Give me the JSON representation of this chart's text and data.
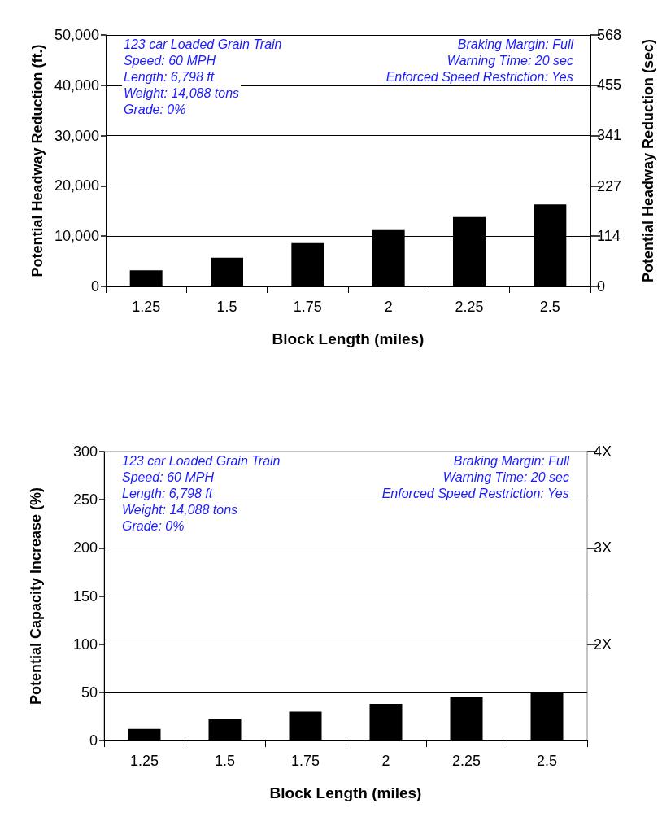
{
  "chart_data": [
    {
      "type": "bar",
      "xlabel": "Block Length (miles)",
      "ylabel": "Potential Headway Reduction (ft.)",
      "y2label": "Potential Headway Reduction (sec)",
      "categories": [
        "1.25",
        "1.5",
        "1.75",
        "2",
        "2.25",
        "2.5"
      ],
      "series": [
        {
          "color": "#000000",
          "values": [
            3200,
            5700,
            8600,
            11200,
            13800,
            16300
          ]
        }
      ],
      "ylim": [
        0,
        50000
      ],
      "yticks": [
        {
          "value": 0,
          "label": "0"
        },
        {
          "value": 10000,
          "label": "10,000"
        },
        {
          "value": 20000,
          "label": "20,000"
        },
        {
          "value": 30000,
          "label": "30,000"
        },
        {
          "value": 40000,
          "label": "40,000"
        },
        {
          "value": 50000,
          "label": "50,000"
        }
      ],
      "y2lim": [
        0,
        568
      ],
      "y2ticks": [
        0,
        114,
        227,
        341,
        455,
        568
      ],
      "grid": "y",
      "annotations": [
        "123 car Loaded Grain Train",
        "Speed: 60 MPH",
        "Length: 6,798 ft",
        "Weight: 14,088 tons",
        "Grade: 0%",
        "Braking Margin: Full",
        "Warning Time: 20 sec",
        "Enforced Speed Restriction: Yes"
      ]
    },
    {
      "type": "bar",
      "xlabel": "Block Length (miles)",
      "ylabel": "Potential Capacity Increase (%)",
      "categories": [
        "1.25",
        "1.5",
        "1.75",
        "2",
        "2.25",
        "2.5"
      ],
      "series": [
        {
          "color": "#000000",
          "values": [
            12,
            22,
            30,
            38,
            45,
            50
          ]
        }
      ],
      "ylim": [
        0,
        300
      ],
      "yticks": [
        0,
        50,
        100,
        150,
        200,
        250,
        300
      ],
      "y2lim": [
        1,
        4
      ],
      "y2ticks": [
        {
          "value": 2,
          "label": "2X"
        },
        {
          "value": 3,
          "label": "3X"
        },
        {
          "value": 4,
          "label": "4X"
        }
      ],
      "grid": "y",
      "annotations": [
        "123 car Loaded Grain Train",
        "Speed: 60 MPH",
        "Length: 6,798 ft",
        "Weight: 14,088 tons",
        "Grade: 0%",
        "Braking Margin: Full",
        "Warning Time: 20 sec",
        "Enforced Speed Restriction: Yes"
      ]
    }
  ]
}
